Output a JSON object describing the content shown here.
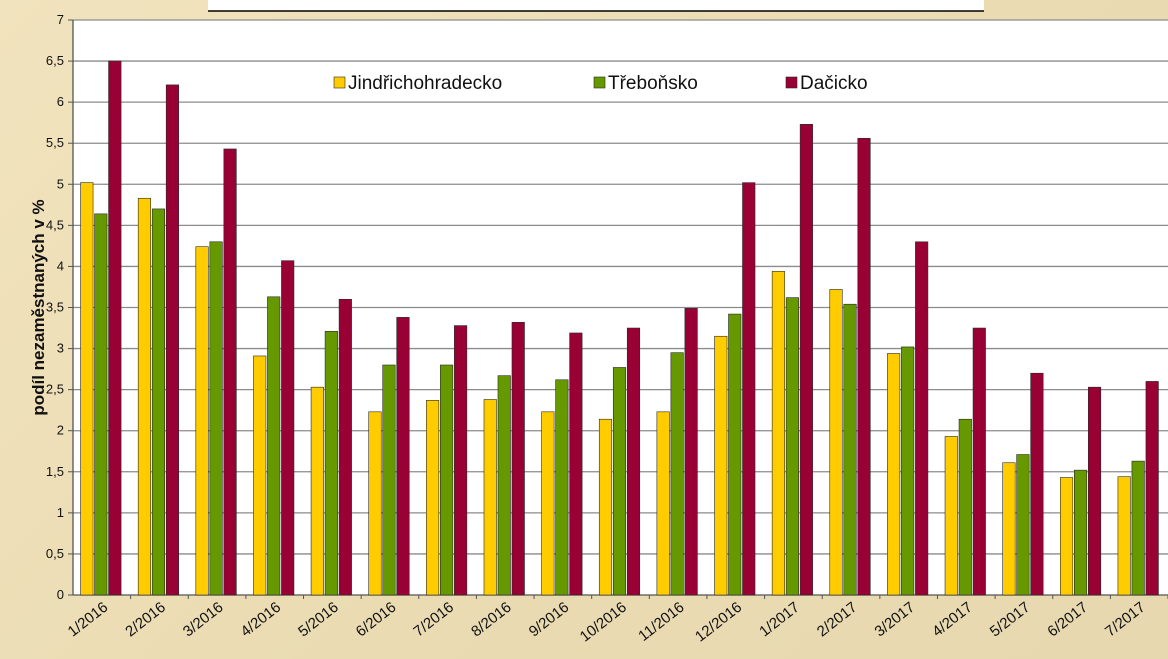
{
  "chart_data": {
    "type": "bar",
    "title": "",
    "xlabel": "",
    "ylabel": "podíl  nezaměstnaných v %",
    "ylim": [
      0,
      7
    ],
    "yticks": [
      "0",
      "0,5",
      "1",
      "1,5",
      "2",
      "2,5",
      "3",
      "3,5",
      "4",
      "4,5",
      "5",
      "5,5",
      "6",
      "6,5",
      "7"
    ],
    "grid": true,
    "legend_position": "top",
    "categories": [
      "1/2016",
      "2/2016",
      "3/2016",
      "4/2016",
      "5/2016",
      "6/2016",
      "7/2016",
      "8/2016",
      "9/2016",
      "10/2016",
      "11/2016",
      "12/2016",
      "1/2017",
      "2/2017",
      "3/2017",
      "4/2017",
      "5/2017",
      "6/2017",
      "7/2017"
    ],
    "series": [
      {
        "name": "Jindřichohradecko",
        "color": "#ffcc00",
        "values": [
          5.02,
          4.83,
          4.24,
          2.91,
          2.53,
          2.23,
          2.37,
          2.38,
          2.23,
          2.14,
          2.23,
          3.15,
          3.94,
          3.72,
          2.94,
          1.93,
          1.61,
          1.43,
          1.44
        ]
      },
      {
        "name": "Třeboňsko",
        "color": "#669900",
        "values": [
          4.64,
          4.7,
          4.3,
          3.63,
          3.21,
          2.8,
          2.8,
          2.67,
          2.62,
          2.77,
          2.95,
          3.42,
          3.62,
          3.54,
          3.02,
          2.14,
          1.71,
          1.52,
          1.63
        ]
      },
      {
        "name": "Dačicko",
        "color": "#990033",
        "values": [
          6.5,
          6.21,
          5.43,
          4.07,
          3.6,
          3.38,
          3.28,
          3.32,
          3.19,
          3.25,
          3.49,
          5.02,
          5.73,
          5.56,
          4.3,
          3.25,
          2.7,
          2.53,
          2.6
        ]
      }
    ]
  }
}
